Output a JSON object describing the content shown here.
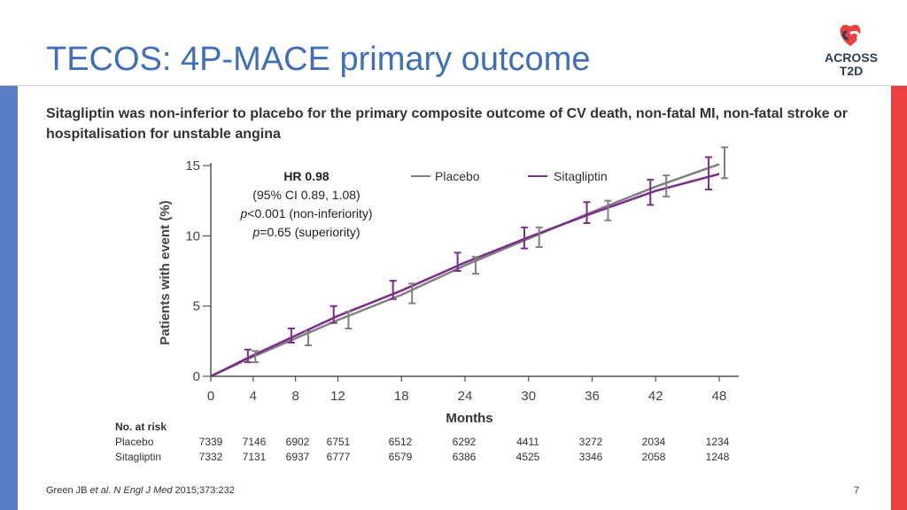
{
  "slide": {
    "title": "TECOS: 4P-MACE primary outcome",
    "logo_line1": "ACROSS",
    "logo_line2": "T2D",
    "subtitle": "Sitagliptin was non-inferior to placebo for the primary composite outcome of CV death, non-fatal MI, non-fatal stroke or hospitalisation for unstable angina",
    "citation_prefix": "Green JB ",
    "citation_italic": "et al. N Engl J Med",
    "citation_suffix": " 2015;373:232",
    "page_number": "7",
    "colors": {
      "title": "#3f6fb8",
      "left_bar": "#5b7fc4",
      "right_bar": "#e8413f"
    }
  },
  "annotation": {
    "hr": "HR 0.98",
    "ci": "(95% CI 0.89, 1.08)",
    "p1_sym": "p",
    "p1_rest": "<0.001 (non-inferiority)",
    "p2_sym": "p",
    "p2_rest": "=0.65 (superiority)"
  },
  "chart_data": {
    "type": "line",
    "ylabel": "Patients with event (%)",
    "xlabel": "Months",
    "xlim": [
      0,
      48
    ],
    "ylim": [
      0,
      15
    ],
    "xticks": [
      0,
      4,
      8,
      12,
      18,
      24,
      30,
      36,
      42,
      48
    ],
    "yticks": [
      0,
      5,
      10,
      15
    ],
    "legend_position": "top-right",
    "series": [
      {
        "name": "Placebo",
        "color": "#808080",
        "x": [
          0,
          4,
          8,
          12,
          18,
          24,
          30,
          36,
          42,
          48
        ],
        "values": [
          0,
          1.4,
          2.7,
          4.0,
          5.8,
          7.9,
          9.8,
          11.7,
          13.5,
          15.1
        ],
        "error_bars": [
          [
            4.2,
            1.0,
            1.8
          ],
          [
            9.2,
            2.2,
            3.2
          ],
          [
            13.0,
            3.4,
            4.6
          ],
          [
            19.0,
            5.2,
            6.6
          ],
          [
            25.0,
            7.3,
            8.5
          ],
          [
            31.0,
            9.2,
            10.6
          ],
          [
            37.5,
            11.1,
            12.5
          ],
          [
            43.0,
            12.8,
            14.3
          ],
          [
            48.5,
            14.1,
            16.3
          ]
        ]
      },
      {
        "name": "Sitagliptin",
        "color": "#7b2d8a",
        "x": [
          0,
          4,
          8,
          12,
          18,
          24,
          30,
          36,
          42,
          48
        ],
        "values": [
          0,
          1.5,
          2.9,
          4.3,
          6.1,
          8.1,
          9.9,
          11.6,
          13.2,
          14.4
        ],
        "error_bars": [
          [
            3.5,
            1.0,
            1.9
          ],
          [
            7.6,
            2.4,
            3.4
          ],
          [
            11.6,
            3.8,
            5.0
          ],
          [
            17.2,
            5.5,
            6.8
          ],
          [
            23.3,
            7.5,
            8.8
          ],
          [
            29.6,
            9.1,
            10.6
          ],
          [
            35.5,
            10.9,
            12.4
          ],
          [
            41.5,
            12.2,
            14.0
          ],
          [
            47.0,
            13.3,
            15.6
          ]
        ]
      }
    ]
  },
  "risk_table": {
    "header": "No. at risk",
    "rows": [
      {
        "label": "Placebo",
        "values": [
          "7339",
          "7146",
          "6902",
          "6751",
          "6512",
          "6292",
          "4411",
          "3272",
          "2034",
          "1234"
        ]
      },
      {
        "label": "Sitagliptin",
        "values": [
          "7332",
          "7131",
          "6937",
          "6777",
          "6579",
          "6386",
          "4525",
          "3346",
          "2058",
          "1248"
        ]
      }
    ]
  }
}
